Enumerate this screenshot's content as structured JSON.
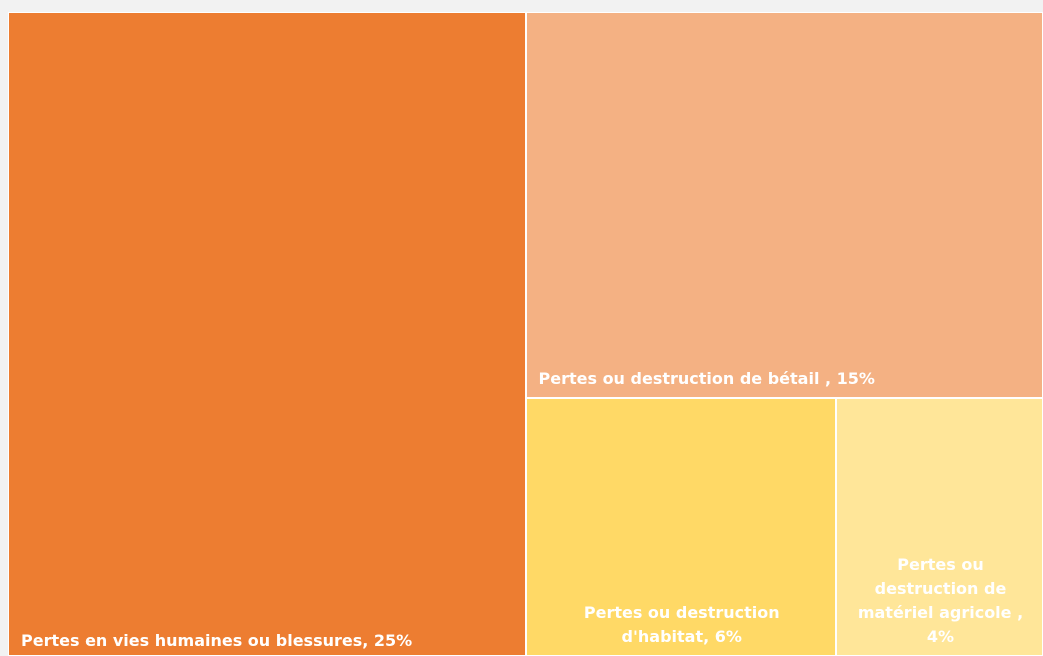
{
  "chart_data": {
    "type": "treemap",
    "categories": [
      "Pertes en vies humaines ou blessures, 25%",
      "Pertes ou destruction de bétail , 15%",
      "Pertes ou destruction d'habitat, 6%",
      "Pertes ou destruction de matériel agricole , 4%"
    ],
    "values": [
      25,
      15,
      6,
      4
    ],
    "colors": [
      "#ed7d31",
      "#f4b183",
      "#ffd966",
      "#ffe699"
    ]
  }
}
